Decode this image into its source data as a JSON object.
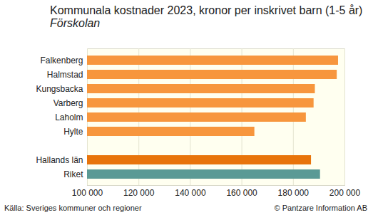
{
  "chart_data": {
    "type": "bar",
    "orientation": "horizontal",
    "title": "Kommunala kostnader 2023, kronor per inskrivet barn (1-5 år)",
    "subtitle": "Förskolan",
    "categories": [
      "Falkenberg",
      "Halmstad",
      "Kungsbacka",
      "Varberg",
      "Laholm",
      "Hylte",
      null,
      "Hallands län",
      "Riket"
    ],
    "values": [
      197500,
      197000,
      188500,
      188000,
      185000,
      165000,
      null,
      187000,
      190500
    ],
    "colors": [
      "#f7963d",
      "#f7963d",
      "#f7963d",
      "#f7963d",
      "#f7963d",
      "#f7963d",
      null,
      "#e8740b",
      "#5b9a95"
    ],
    "xlim": [
      100000,
      200000
    ],
    "xticks": [
      {
        "value": 100000,
        "label": "100 000"
      },
      {
        "value": 120000,
        "label": "120 000"
      },
      {
        "value": 140000,
        "label": "140 000"
      },
      {
        "value": 160000,
        "label": "160 000"
      },
      {
        "value": 180000,
        "label": "180 000"
      },
      {
        "value": 200000,
        "label": "200 000"
      }
    ],
    "grid": true,
    "annotations": [
      "Källa: Sveriges kommuner och regioner",
      "© Pantzare Information AB"
    ]
  }
}
